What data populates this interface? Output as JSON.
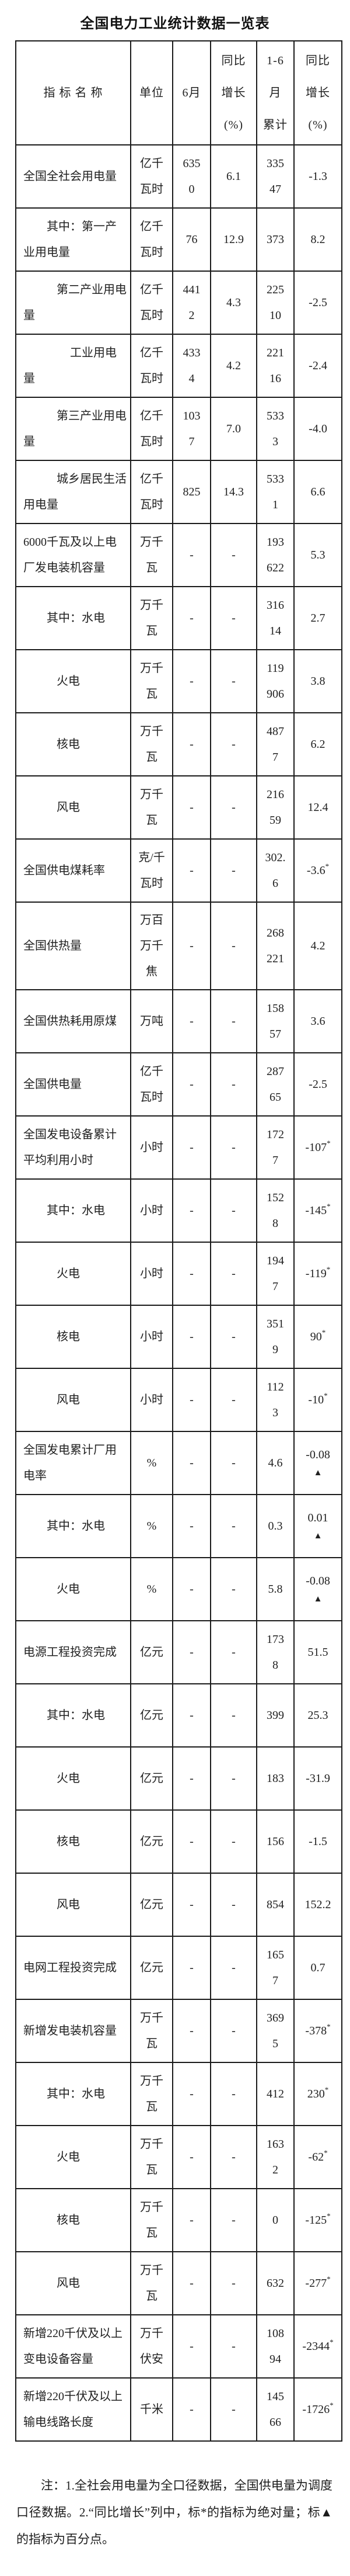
{
  "page": {
    "title": "全国电力工业统计数据一览表",
    "note": "注：1.全社会用电量为全口径数据，全国供电量为调度口径数据。2.“同比增长”列中，标*的指标为绝对量；标▲的指标为百分点。"
  },
  "table": {
    "headers": [
      "指 标 名 称",
      "单位",
      "6月",
      "同比\n增长\n(%)",
      "1-6\n月\n累计",
      "同比\n增长\n(%)"
    ],
    "rows": [
      {
        "name": "全国全社会用电量",
        "indent": 0,
        "unit": "亿千\n瓦时",
        "june": "6350",
        "june_yoy": "6.1",
        "cum": "33547",
        "cum_yoy": "-1.3"
      },
      {
        "name": "其中：第一产\n业用电量",
        "indent": 1,
        "unit": "亿千\n瓦时",
        "june": "76",
        "june_yoy": "12.9",
        "cum": "373",
        "cum_yoy": "8.2"
      },
      {
        "name": "第二产业用电\n量",
        "indent": 2,
        "unit": "亿千\n瓦时",
        "june": "4412",
        "june_yoy": "4.3",
        "cum": "22510",
        "cum_yoy": "-2.5"
      },
      {
        "name": "工业用电\n量",
        "indent": 3,
        "unit": "亿千\n瓦时",
        "june": "4334",
        "june_yoy": "4.2",
        "cum": "22116",
        "cum_yoy": "-2.4"
      },
      {
        "name": "第三产业用电\n量",
        "indent": 2,
        "unit": "亿千\n瓦时",
        "june": "1037",
        "june_yoy": "7.0",
        "cum": "5333",
        "cum_yoy": "-4.0"
      },
      {
        "name": "城乡居民生活\n用电量",
        "indent": 2,
        "unit": "亿千\n瓦时",
        "june": "825",
        "june_yoy": "14.3",
        "cum": "5331",
        "cum_yoy": "6.6"
      },
      {
        "name": "6000千瓦及以上电\n厂发电装机容量",
        "indent": 0,
        "unit": "万千\n瓦",
        "june": "-",
        "june_yoy": "-",
        "cum": "193622",
        "cum_yoy": "5.3"
      },
      {
        "name": "其中：水电",
        "indent": 1,
        "unit": "万千\n瓦",
        "june": "-",
        "june_yoy": "-",
        "cum": "31614",
        "cum_yoy": "2.7"
      },
      {
        "name": "火电",
        "indent": 2,
        "unit": "万千\n瓦",
        "june": "-",
        "june_yoy": "-",
        "cum": "119906",
        "cum_yoy": "3.8"
      },
      {
        "name": "核电",
        "indent": 2,
        "unit": "万千\n瓦",
        "june": "-",
        "june_yoy": "-",
        "cum": "4877",
        "cum_yoy": "6.2"
      },
      {
        "name": "风电",
        "indent": 2,
        "unit": "万千\n瓦",
        "june": "-",
        "june_yoy": "-",
        "cum": "21659",
        "cum_yoy": "12.4"
      },
      {
        "name": "全国供电煤耗率",
        "indent": 0,
        "unit": "克/千\n瓦时",
        "june": "-",
        "june_yoy": "-",
        "cum": "302.6",
        "cum_yoy": "-3.6*"
      },
      {
        "name": "全国供热量",
        "indent": 0,
        "unit": "万百\n万千\n焦",
        "june": "-",
        "june_yoy": "-",
        "cum": "268221",
        "cum_yoy": "4.2"
      },
      {
        "name": "全国供热耗用原煤",
        "indent": 0,
        "unit": "万吨",
        "june": "-",
        "june_yoy": "-",
        "cum": "15857",
        "cum_yoy": "3.6"
      },
      {
        "name": "全国供电量",
        "indent": 0,
        "unit": "亿千\n瓦时",
        "june": "-",
        "june_yoy": "-",
        "cum": "28765",
        "cum_yoy": "-2.5"
      },
      {
        "name": "全国发电设备累计\n平均利用小时",
        "indent": 0,
        "unit": "小时",
        "june": "-",
        "june_yoy": "-",
        "cum": "1727",
        "cum_yoy": "-107*"
      },
      {
        "name": "其中：水电",
        "indent": 1,
        "unit": "小时",
        "june": "-",
        "june_yoy": "-",
        "cum": "1528",
        "cum_yoy": "-145*"
      },
      {
        "name": "火电",
        "indent": 2,
        "unit": "小时",
        "june": "-",
        "june_yoy": "-",
        "cum": "1947",
        "cum_yoy": "-119*"
      },
      {
        "name": "核电",
        "indent": 2,
        "unit": "小时",
        "june": "-",
        "june_yoy": "-",
        "cum": "3519",
        "cum_yoy": "90*"
      },
      {
        "name": "风电",
        "indent": 2,
        "unit": "小时",
        "june": "-",
        "june_yoy": "-",
        "cum": "1123",
        "cum_yoy": "-10*"
      },
      {
        "name": "全国发电累计厂用\n电率",
        "indent": 0,
        "unit": "%",
        "june": "-",
        "june_yoy": "-",
        "cum": "4.6",
        "cum_yoy": "-0.08▲"
      },
      {
        "name": "其中：水电",
        "indent": 1,
        "unit": "%",
        "june": "-",
        "june_yoy": "-",
        "cum": "0.3",
        "cum_yoy": "0.01▲"
      },
      {
        "name": "火电",
        "indent": 2,
        "unit": "%",
        "june": "-",
        "june_yoy": "-",
        "cum": "5.8",
        "cum_yoy": "-0.08▲"
      },
      {
        "name": "电源工程投资完成",
        "indent": 0,
        "unit": "亿元",
        "june": "-",
        "june_yoy": "-",
        "cum": "1738",
        "cum_yoy": "51.5"
      },
      {
        "name": "其中：水电",
        "indent": 1,
        "unit": "亿元",
        "june": "-",
        "june_yoy": "-",
        "cum": "399",
        "cum_yoy": "25.3"
      },
      {
        "name": "火电",
        "indent": 2,
        "unit": "亿元",
        "june": "-",
        "june_yoy": "-",
        "cum": "183",
        "cum_yoy": "-31.9"
      },
      {
        "name": "核电",
        "indent": 2,
        "unit": "亿元",
        "june": "-",
        "june_yoy": "-",
        "cum": "156",
        "cum_yoy": "-1.5"
      },
      {
        "name": "风电",
        "indent": 2,
        "unit": "亿元",
        "june": "-",
        "june_yoy": "-",
        "cum": "854",
        "cum_yoy": "152.2"
      },
      {
        "name": "电网工程投资完成",
        "indent": 0,
        "unit": "亿元",
        "june": "-",
        "june_yoy": "-",
        "cum": "1657",
        "cum_yoy": "0.7"
      },
      {
        "name": "新增发电装机容量",
        "indent": 0,
        "unit": "万千\n瓦",
        "june": "-",
        "june_yoy": "-",
        "cum": "3695",
        "cum_yoy": "-378*"
      },
      {
        "name": "其中：水电",
        "indent": 1,
        "unit": "万千\n瓦",
        "june": "-",
        "june_yoy": "-",
        "cum": "412",
        "cum_yoy": "230*"
      },
      {
        "name": "火电",
        "indent": 2,
        "unit": "万千\n瓦",
        "june": "-",
        "june_yoy": "-",
        "cum": "1632",
        "cum_yoy": "-62*"
      },
      {
        "name": "核电",
        "indent": 2,
        "unit": "万千\n瓦",
        "june": "-",
        "june_yoy": "-",
        "cum": "0",
        "cum_yoy": "-125*"
      },
      {
        "name": "风电",
        "indent": 2,
        "unit": "万千\n瓦",
        "june": "-",
        "june_yoy": "-",
        "cum": "632",
        "cum_yoy": "-277*"
      },
      {
        "name": "新增220千伏及以上\n变电设备容量",
        "indent": 0,
        "unit": "万千\n伏安",
        "june": "-",
        "june_yoy": "-",
        "cum": "10894",
        "cum_yoy": "-2344*"
      },
      {
        "name": "新增220千伏及以上\n输电线路长度",
        "indent": 0,
        "unit": "千米",
        "june": "-",
        "june_yoy": "-",
        "cum": "14566",
        "cum_yoy": "-1726*"
      }
    ]
  }
}
